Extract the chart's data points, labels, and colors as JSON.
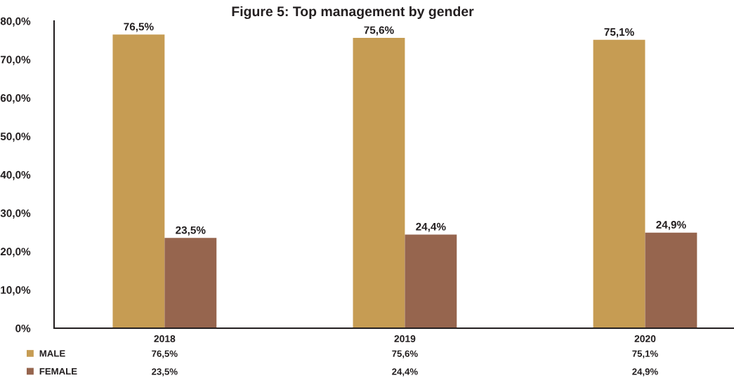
{
  "chart_data": {
    "type": "bar",
    "title": "Figure 5: Top management by gender",
    "categories": [
      "2018",
      "2019",
      "2020"
    ],
    "series": [
      {
        "name": "MALE",
        "color": "#c69c53",
        "values": [
          76.5,
          75.6,
          75.1
        ],
        "value_labels": [
          "76,5%",
          "75,6%",
          "75,1%"
        ]
      },
      {
        "name": "FEMALE",
        "color": "#96654e",
        "values": [
          23.5,
          24.4,
          24.9
        ],
        "value_labels": [
          "23,5%",
          "24,4%",
          "24,9%"
        ]
      }
    ],
    "ylim": [
      0,
      80
    ],
    "yticks": [
      {
        "value": 0,
        "label": "0%"
      },
      {
        "value": 10,
        "label": "10,0%"
      },
      {
        "value": 20,
        "label": "20,0%"
      },
      {
        "value": 30,
        "label": "30,0%"
      },
      {
        "value": 40,
        "label": "40,0%"
      },
      {
        "value": 50,
        "label": "50,0%"
      },
      {
        "value": 60,
        "label": "60,0%"
      },
      {
        "value": 70,
        "label": "70,0%"
      },
      {
        "value": 80,
        "label": "80,0%"
      }
    ],
    "grid": false,
    "legend": "bottom left"
  }
}
